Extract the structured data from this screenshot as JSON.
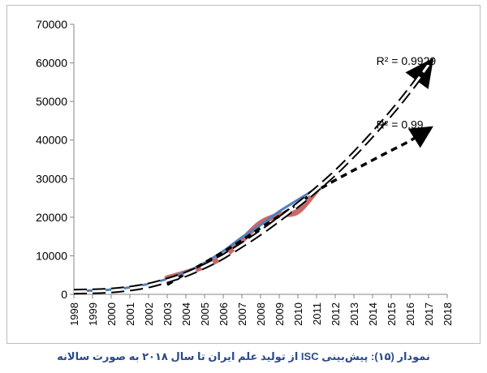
{
  "chart_data": {
    "type": "line",
    "title": "",
    "xlabel": "",
    "ylabel": "",
    "ylim": [
      0,
      70000
    ],
    "yticks": [
      0,
      10000,
      20000,
      30000,
      40000,
      50000,
      60000,
      70000
    ],
    "xlim": [
      1998,
      2018
    ],
    "xticks": [
      1998,
      1999,
      2000,
      2001,
      2002,
      2003,
      2004,
      2005,
      2006,
      2007,
      2008,
      2009,
      2010,
      2011,
      2012,
      2013,
      2014,
      2015,
      2016,
      2017,
      2018
    ],
    "grid": false,
    "series": [
      {
        "style": "solid-blue",
        "color": "#4f81bd",
        "x": [
          1998,
          1999,
          2000,
          2001,
          2002,
          2003,
          2004,
          2005,
          2006,
          2007,
          2008,
          2009,
          2010,
          2011
        ],
        "y": [
          900,
          1000,
          1200,
          1800,
          2700,
          4000,
          5800,
          8200,
          11200,
          14800,
          18000,
          21500,
          24500,
          27500
        ]
      },
      {
        "style": "solid-red-thick",
        "color": "#c0504d",
        "x": [
          2003,
          2004,
          2005,
          2006,
          2007,
          2008,
          2009,
          2010,
          2011
        ],
        "y": [
          4200,
          5600,
          7300,
          9800,
          14000,
          18500,
          20500,
          21500,
          27000
        ]
      },
      {
        "style": "dashed-white-black-exponential",
        "color": "#000000",
        "x": [
          1998,
          1999,
          2000,
          2001,
          2002,
          2003,
          2004,
          2005,
          2006,
          2007,
          2008,
          2009,
          2010,
          2011,
          2012,
          2013,
          2014,
          2015,
          2016,
          2017
        ],
        "y": [
          700,
          800,
          1000,
          1500,
          2300,
          3600,
          5200,
          7300,
          9800,
          12800,
          16000,
          19500,
          23200,
          27200,
          31500,
          36300,
          41500,
          47000,
          53000,
          59500
        ]
      },
      {
        "style": "dashed-black-polynomial",
        "color": "#000000",
        "x": [
          2003,
          2004,
          2005,
          2006,
          2007,
          2008,
          2009,
          2010,
          2011,
          2012,
          2013,
          2014,
          2015,
          2016,
          2017
        ],
        "y": [
          2500,
          5400,
          8200,
          11000,
          14000,
          17200,
          20300,
          23500,
          26800,
          29600,
          32200,
          34800,
          37300,
          39800,
          42800
        ]
      }
    ],
    "annotations": [
      {
        "text": "R² = 0.9929",
        "x": 2014.2,
        "y": 59500
      },
      {
        "text": "R² = 0.99",
        "x": 2014.2,
        "y": 43000
      }
    ]
  },
  "caption": "نمودار (۱۵): پیش‌بینی ISC از تولید علم ایران تا سال ۲۰۱۸ به صورت سالانه"
}
